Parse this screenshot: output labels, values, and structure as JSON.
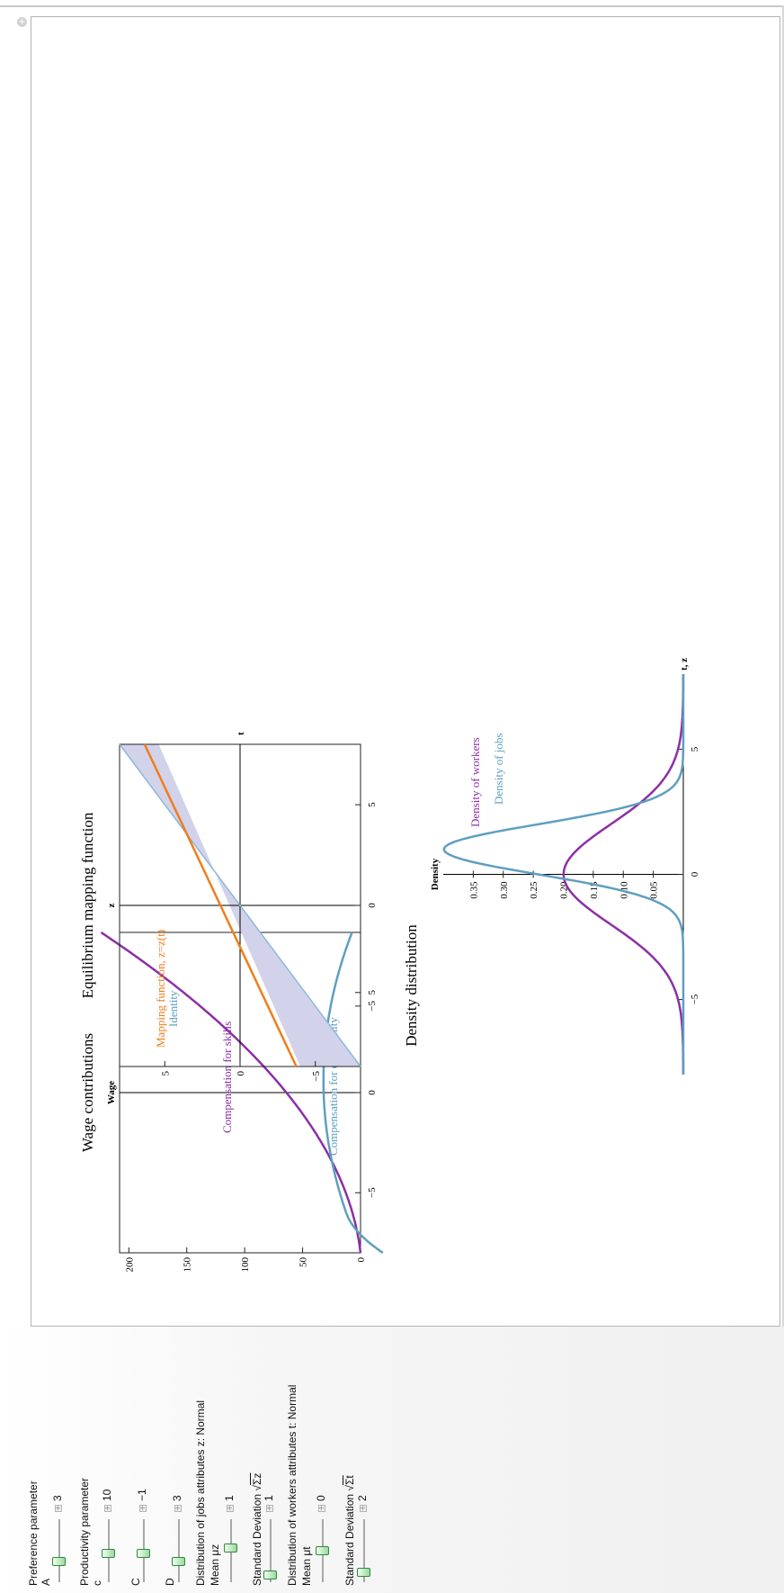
{
  "window": {
    "close_glyph": "+"
  },
  "plot_wage": {
    "title": "Wage contributions",
    "ylabel": "Wage",
    "x_ticks": [
      "−5",
      "0",
      "5"
    ],
    "y_ticks": [
      "0",
      "50",
      "100",
      "150",
      "200"
    ],
    "label_skills": "Compensation for skills",
    "label_disamenity": "Compensation for disamenity"
  },
  "plot_mapping": {
    "title": "Equilibrium mapping function",
    "ylabel": "z",
    "xlabel": "t",
    "x_ticks": [
      "−5",
      "0",
      "5"
    ],
    "y_ticks": [
      "−5",
      "0",
      "5"
    ],
    "label_mapping": "Mapping function, z=z(t)",
    "label_identity": "Identity"
  },
  "plot_density": {
    "title": "Density distribution",
    "ylabel": "Density",
    "xlabel": "t, z",
    "x_ticks": [
      "−5",
      "0",
      "5"
    ],
    "y_ticks": [
      "0.05",
      "0.10",
      "0.15",
      "0.20",
      "0.25",
      "0.30",
      "0.35"
    ],
    "label_workers": "Density of workers",
    "label_jobs": "Density of jobs"
  },
  "controls": {
    "pref_heading": "Preference parameter",
    "prod_heading": "Productivity parameter",
    "jobs_heading": "Distribution of jobs attributes z: Normal",
    "workers_heading": "Distribution of workers attributes t: Normal",
    "sd_z_label": "Standard Deviation",
    "sd_z_symbol": "Σz",
    "sd_t_label": "Standard Deviation",
    "sd_t_symbol": "Σt",
    "sliders": {
      "A": {
        "label": "A",
        "value": "3",
        "level": 0.3
      },
      "c": {
        "label": "c",
        "value": "10",
        "level": 0.45
      },
      "C": {
        "label": "C",
        "value": "−1",
        "level": 0.45
      },
      "D": {
        "label": "D",
        "value": "3",
        "level": 0.3
      },
      "mu_z": {
        "label": "Mean μz",
        "value": "1",
        "level": 0.55
      },
      "sd_z": {
        "value": "1",
        "level": 0.05
      },
      "mu_t": {
        "label": "Mean μt",
        "value": "0",
        "level": 0.5
      },
      "sd_t": {
        "value": "2",
        "level": 0.1
      }
    }
  },
  "colors": {
    "purple": "#8c2fa6",
    "blue": "#5e9fc0",
    "orange": "#f07d1a",
    "identity": "#8fb7d8",
    "fill": "#d2d2ea"
  }
}
